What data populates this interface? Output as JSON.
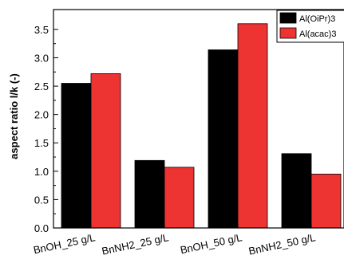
{
  "chart_data": {
    "type": "bar",
    "title": "",
    "xlabel": "",
    "ylabel": "aspect ratio l/k (-)",
    "categories": [
      "BnOH_25 g/L",
      "BnNH2_25 g/L",
      "BnOH_50 g/L",
      "BnNH2_50 g/L"
    ],
    "series": [
      {
        "name": "Al(OiPr)3",
        "color": "#000000",
        "values": [
          2.55,
          1.19,
          3.14,
          1.31
        ]
      },
      {
        "name": "Al(acac)3",
        "color": "#ee3333",
        "values": [
          2.72,
          1.07,
          3.6,
          0.95
        ]
      }
    ],
    "ylim": [
      0,
      3.85
    ],
    "yticks": [
      "0.0",
      "0.5",
      "1.0",
      "1.5",
      "2.0",
      "2.5",
      "3.0",
      "3.5"
    ],
    "legend": "top-right",
    "grid": false
  }
}
